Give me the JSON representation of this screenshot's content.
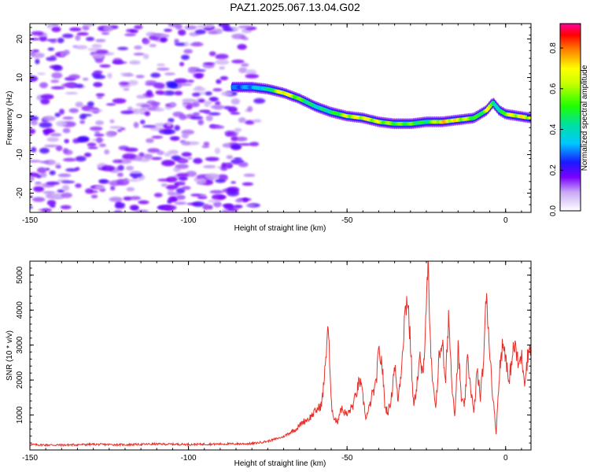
{
  "title": "PAZ1.2025.067.13.04.G02",
  "chart_data": [
    {
      "type": "heatmap",
      "xlabel": "Height of straight line (km)",
      "ylabel": "Frequency (Hz)",
      "xlim": [
        -150,
        8
      ],
      "ylim": [
        -25,
        24
      ],
      "xticks": [
        -150,
        -100,
        -50,
        0
      ],
      "yticks": [
        -20,
        -10,
        0,
        10,
        20
      ],
      "colorbar": {
        "label": "Normalized spectral amplitude",
        "ticks": [
          0.0,
          0.2,
          0.4,
          0.6,
          0.8
        ],
        "range": [
          0,
          0.92
        ]
      },
      "ridge": {
        "x": [
          -86,
          -80,
          -75,
          -70,
          -65,
          -60,
          -55,
          -50,
          -45,
          -40,
          -35,
          -30,
          -25,
          -20,
          -15,
          -10,
          -8,
          -6,
          -4,
          -2,
          0,
          4,
          8
        ],
        "y": [
          7.5,
          7.5,
          7,
          6,
          4.5,
          2.5,
          1,
          0,
          -0.5,
          -1.5,
          -2,
          -2,
          -1.5,
          -1.5,
          -1,
          -0.5,
          0.5,
          1.5,
          3.5,
          1.5,
          0.5,
          0,
          -0.5
        ],
        "amplitude": [
          0.3,
          0.35,
          0.45,
          0.8,
          0.6,
          0.45,
          0.5,
          0.7,
          0.75,
          0.7,
          0.6,
          0.6,
          0.5,
          0.8,
          0.75,
          0.6,
          0.5,
          0.75,
          0.55,
          0.4,
          0.7,
          0.75,
          0.75
        ]
      },
      "noise_region_x": [
        -150,
        -75
      ]
    },
    {
      "type": "line",
      "xlabel": "Height of straight line (km)",
      "ylabel": "SNR (10 * v/v)",
      "xlim": [
        -150,
        8
      ],
      "ylim": [
        0,
        5400
      ],
      "xticks": [
        -150,
        -100,
        -50,
        0
      ],
      "yticks": [
        1000,
        2000,
        3000,
        4000,
        5000
      ],
      "color": "#e8302a",
      "x": [
        -150,
        -140,
        -130,
        -120,
        -110,
        -100,
        -90,
        -80,
        -75,
        -70,
        -68,
        -66,
        -64,
        -62,
        -60,
        -58,
        -57,
        -56,
        -55.5,
        -55,
        -54,
        -53,
        -52,
        -50,
        -48,
        -46,
        -45,
        -44,
        -43,
        -42,
        -41,
        -40,
        -39,
        -38,
        -37,
        -36,
        -35,
        -34,
        -33,
        -32,
        -31,
        -30,
        -29,
        -28,
        -27,
        -26,
        -25,
        -24.5,
        -24,
        -23,
        -22,
        -21,
        -20,
        -19,
        -18,
        -17,
        -16,
        -15,
        -14,
        -13,
        -12,
        -11,
        -10,
        -9,
        -8,
        -7,
        -6,
        -5,
        -4,
        -3,
        -2,
        -1,
        0,
        1,
        2,
        3,
        4,
        5,
        6,
        7,
        8
      ],
      "y": [
        150,
        140,
        160,
        150,
        170,
        160,
        170,
        180,
        250,
        380,
        500,
        600,
        800,
        900,
        1100,
        1300,
        2200,
        3700,
        2500,
        1300,
        900,
        800,
        1200,
        1000,
        1300,
        2000,
        1500,
        900,
        1200,
        1600,
        1800,
        2800,
        2500,
        1200,
        1100,
        1500,
        2500,
        1400,
        2200,
        3600,
        4500,
        3000,
        1200,
        1900,
        2600,
        2000,
        4400,
        5400,
        3500,
        1800,
        1300,
        2600,
        3200,
        1800,
        3900,
        2000,
        1000,
        2900,
        1500,
        1200,
        2600,
        1800,
        1000,
        2300,
        1500,
        2500,
        4500,
        2800,
        1500,
        500,
        2200,
        3000,
        2800,
        1800,
        2700,
        3000,
        2400,
        2700,
        2000,
        2700,
        3100
      ]
    }
  ]
}
